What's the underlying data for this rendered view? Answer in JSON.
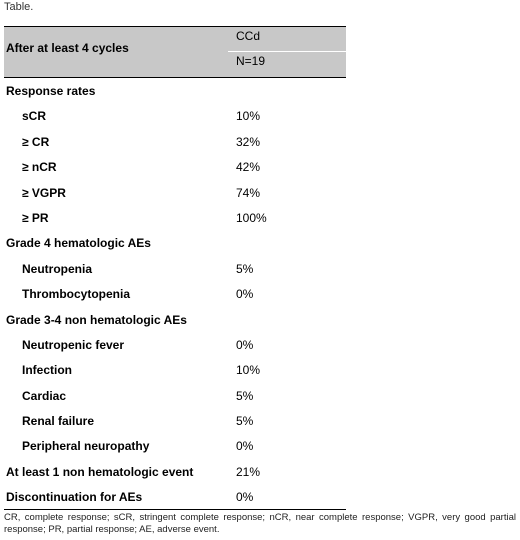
{
  "caption": "Table.",
  "header": {
    "row_label": "After at least 4 cycles",
    "column_name": "CCd",
    "column_n": "N=19"
  },
  "rows": [
    {
      "label": "Response rates",
      "value": "",
      "type": "section"
    },
    {
      "label": "sCR",
      "value": "10%",
      "type": "sub"
    },
    {
      "label": "≥ CR",
      "value": "32%",
      "type": "sub"
    },
    {
      "label": "≥ nCR",
      "value": "42%",
      "type": "sub"
    },
    {
      "label": "≥ VGPR",
      "value": "74%",
      "type": "sub"
    },
    {
      "label": "≥ PR",
      "value": "100%",
      "type": "sub"
    },
    {
      "label": "Grade 4 hematologic AEs",
      "value": "",
      "type": "section"
    },
    {
      "label": "Neutropenia",
      "value": "5%",
      "type": "sub"
    },
    {
      "label": "Thrombocytopenia",
      "value": "0%",
      "type": "sub"
    },
    {
      "label": "Grade 3-4 non hematologic AEs",
      "value": "",
      "type": "section"
    },
    {
      "label": "Neutropenic fever",
      "value": "0%",
      "type": "sub"
    },
    {
      "label": "Infection",
      "value": "10%",
      "type": "sub"
    },
    {
      "label": "Cardiac",
      "value": "5%",
      "type": "sub"
    },
    {
      "label": "Renal failure",
      "value": "5%",
      "type": "sub"
    },
    {
      "label": "Peripheral neuropathy",
      "value": "0%",
      "type": "sub"
    },
    {
      "label": "At least 1 non hematologic event",
      "value": "21%",
      "type": "section"
    },
    {
      "label": "Discontinuation for AEs",
      "value": "0%",
      "type": "section"
    }
  ],
  "footnote": "CR, complete response; sCR, stringent complete response; nCR, near complete response; VGPR, very good partial response; PR, partial response; AE, adverse event."
}
